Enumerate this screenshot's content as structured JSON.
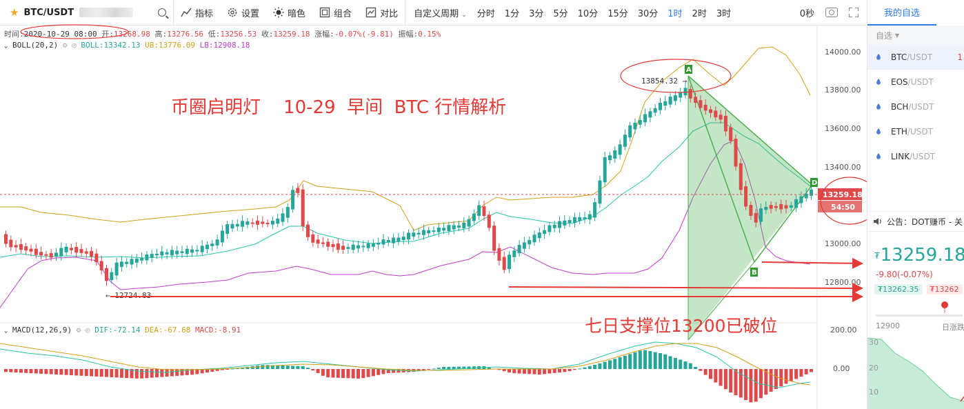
{
  "toolbar": {
    "symbol": "BTC/USDT",
    "buttons": {
      "indicators": "指标",
      "settings": "设置",
      "dark": "暗色",
      "combo": "组合",
      "compare": "对比"
    },
    "custom_period": "自定义周期",
    "periods": [
      "分时",
      "1分",
      "3分",
      "5分",
      "10分",
      "15分",
      "30分",
      "1时",
      "2时",
      "3时"
    ],
    "active_period": "1时",
    "seconds": "0秒"
  },
  "info": {
    "time_label": "时间:",
    "time": "2020-10-29 08:00",
    "open_label": "开:",
    "open": "13268.98",
    "high_label": "高:",
    "high": "13276.56",
    "low_label": "低:",
    "low": "13256.53",
    "close_label": "收:",
    "close": "13259.18",
    "change_label": "涨幅:",
    "change": "-0.07%(-9.81)",
    "amp_label": "振幅:",
    "amp": "0.15%"
  },
  "boll": {
    "label": "BOLL(20,2)",
    "boll": "BOLL:13342.13",
    "ub": "UB:13776.09",
    "lb": "LB:12908.18"
  },
  "macd": {
    "label": "MACD(12,26,9)",
    "dif": "DIF:-72.14",
    "dea": "DEA:-67.68",
    "macd": "MACD:-8.91"
  },
  "annotations": {
    "title": "币圈启明灯    10-29  早间  BTC 行情解析",
    "support": "七日支撑位13200已破位",
    "high_label": "13854.32 →",
    "low_label": "← 12724.83",
    "point_a": "A",
    "point_b": "B",
    "point_d": "D",
    "last_price": "13259.18",
    "countdown": "54:50"
  },
  "y_axis": {
    "price_ticks": [
      "14000.00",
      "13800.00",
      "13600.00",
      "13400.00",
      "13000.00",
      "12800.00"
    ],
    "macd_ticks": [
      "200.00",
      "0.00"
    ]
  },
  "colors": {
    "up": "#26a69a",
    "down": "#e0494a",
    "boll_mid": "#26c4a8",
    "boll_upper": "#d4a017",
    "boll_lower": "#c23bd0",
    "accent": "#2d7be5",
    "annotation": "#e53935"
  },
  "panel": {
    "title": "我的自选",
    "sub": "自选",
    "coins": [
      {
        "base": "BTC",
        "quote": "/USDT",
        "right": "1"
      },
      {
        "base": "EOS",
        "quote": "/USDT",
        "right": ""
      },
      {
        "base": "BCH",
        "quote": "/USDT",
        "right": ""
      },
      {
        "base": "ETH",
        "quote": "/USDT",
        "right": ""
      },
      {
        "base": "LINK",
        "quote": "/USDT",
        "right": ""
      }
    ],
    "notice": "公告：DOT赚币 - 关",
    "price_symbol": "₮",
    "price": "13259.18",
    "change": "-9.80(-0.07%)",
    "bid": "₮13262.35",
    "ask": "₮13262",
    "range_low": "12900",
    "range_right": "日涨跌",
    "mini_ticks": [
      "30",
      "20",
      "10"
    ]
  }
}
